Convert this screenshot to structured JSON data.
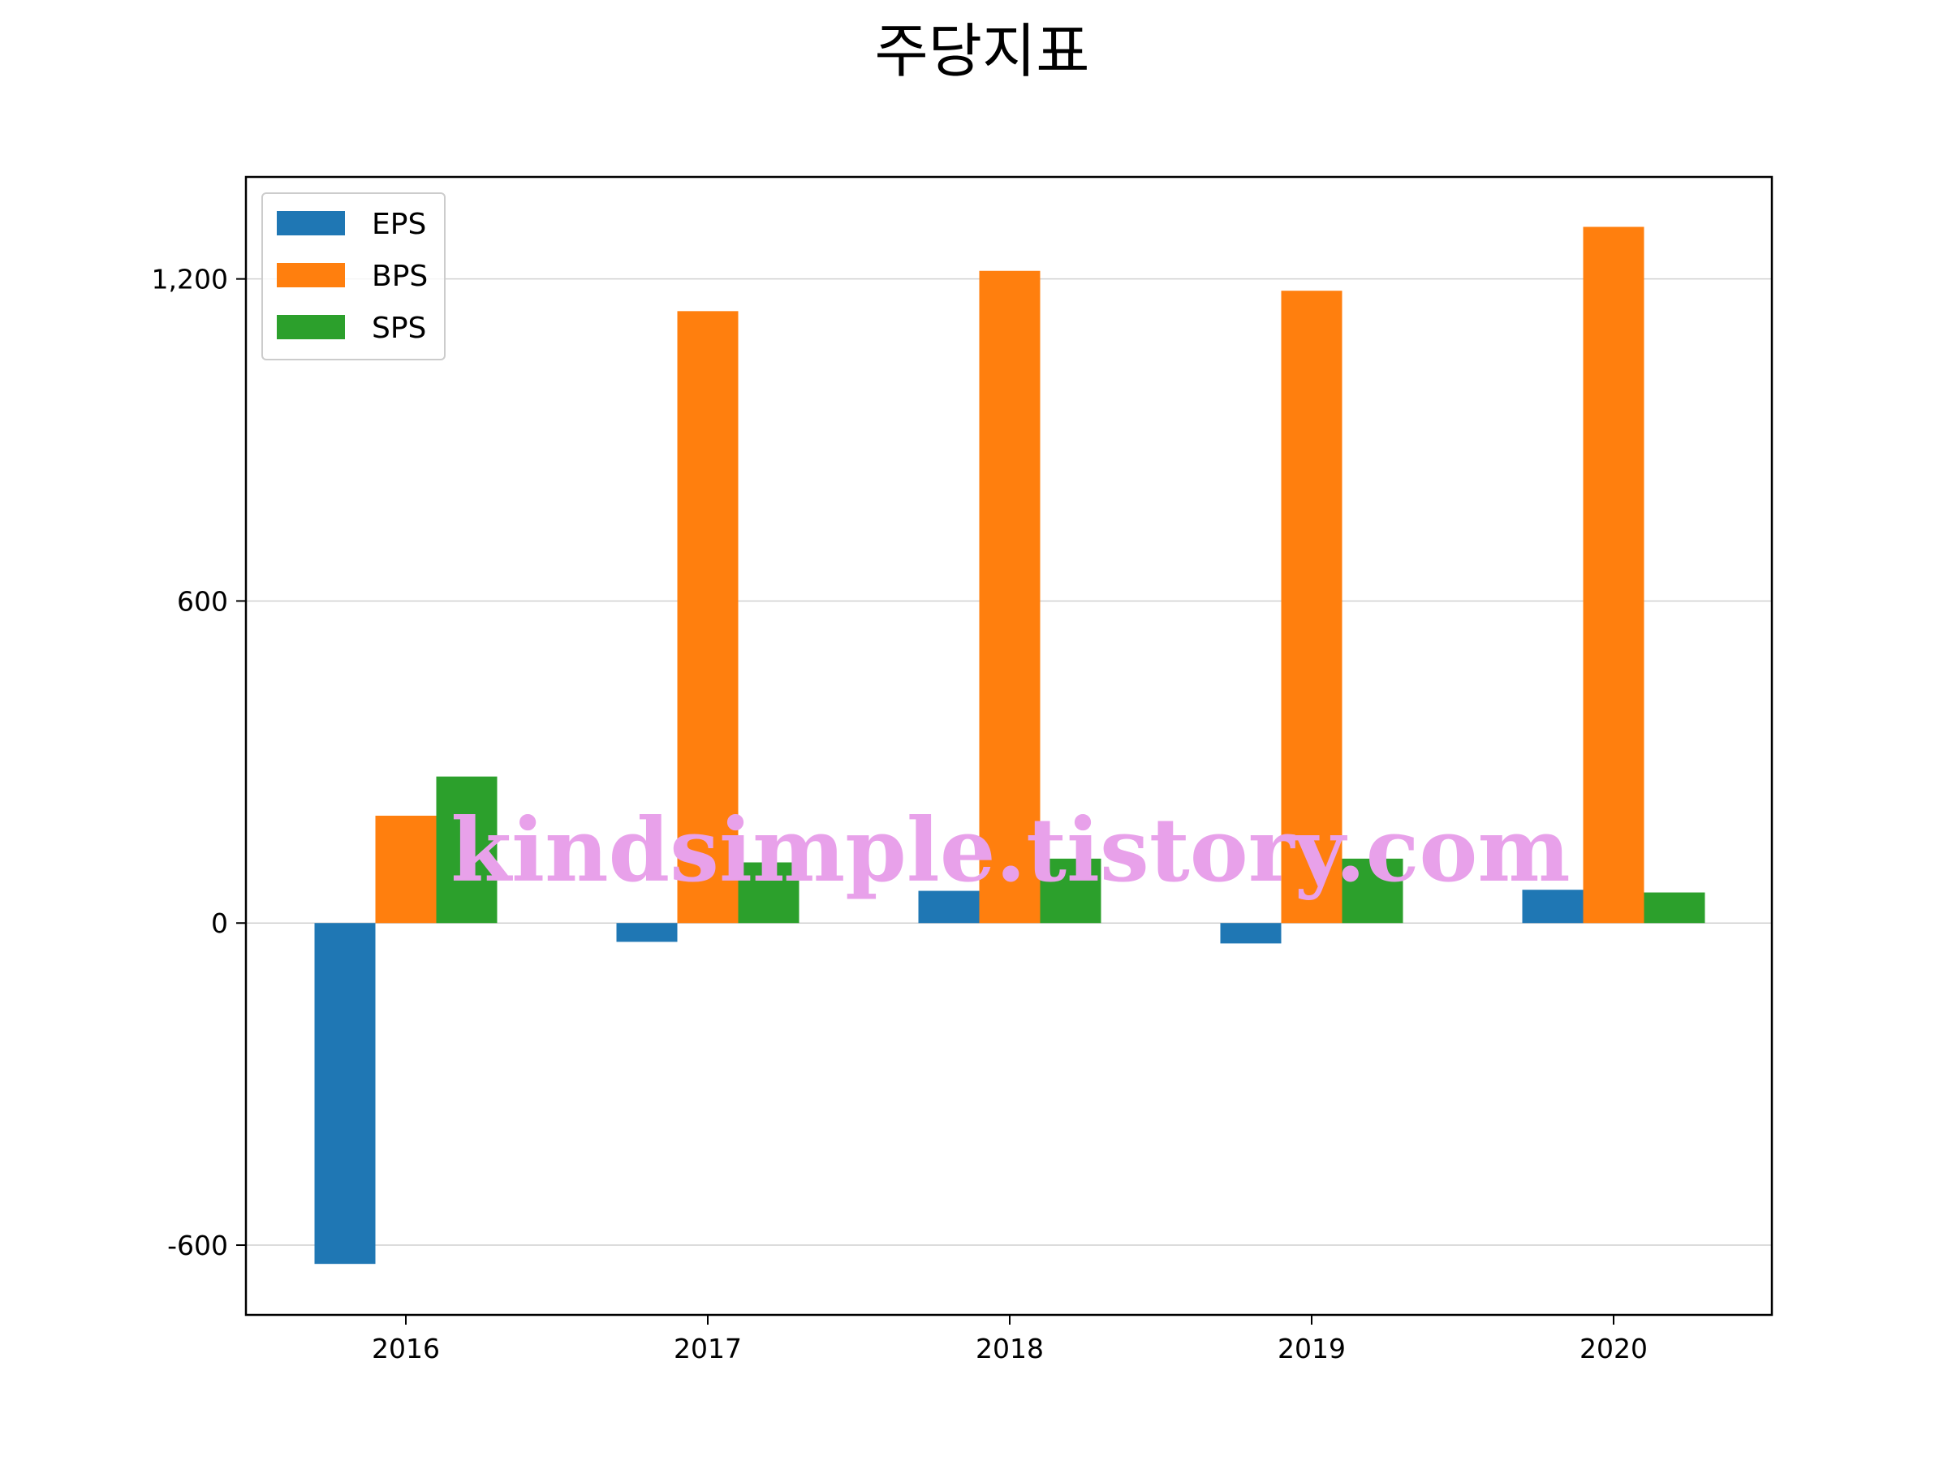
{
  "chart_data": {
    "type": "bar",
    "title": "주당지표",
    "xlabel": "",
    "ylabel": "",
    "categories": [
      "2016",
      "2017",
      "2018",
      "2019",
      "2020"
    ],
    "series": [
      {
        "name": "EPS",
        "color": "#1f77b4",
        "values": [
          -635,
          -35,
          60,
          -38,
          62
        ]
      },
      {
        "name": "BPS",
        "color": "#ff7f0e",
        "values": [
          200,
          1140,
          1215,
          1178,
          1297
        ]
      },
      {
        "name": "SPS",
        "color": "#2ca02c",
        "values": [
          273,
          113,
          120,
          120,
          57
        ]
      }
    ],
    "ylim": [
      -730,
      1390
    ],
    "yticks": [
      -600,
      0,
      600,
      1200
    ],
    "ytick_labels": [
      "-600",
      "0",
      "600",
      "1,200"
    ],
    "grid": "horizontal",
    "legend_position": "top-left"
  },
  "watermark": "kindsimple.tistory.com"
}
